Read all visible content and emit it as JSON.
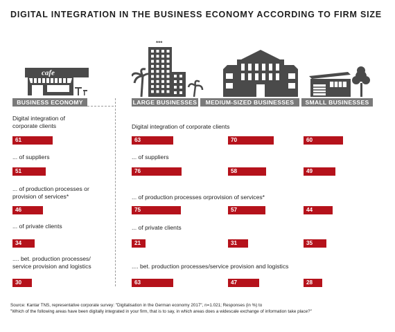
{
  "title": "DIGITAL INTEGRATION IN THE BUSINESS ECONOMY ACCORDING TO FIRM SIZE",
  "icons": {
    "business": {
      "name": "cafe-icon",
      "text": "cafe"
    },
    "large": {
      "name": "skyscraper-icon",
      "stars": "***"
    },
    "medium": {
      "name": "office-building-icon"
    },
    "small": {
      "name": "small-house-icon"
    }
  },
  "colors": {
    "bar": "#b5121b",
    "band": "#7a7a7a",
    "icon": "#4a4a4a"
  },
  "chart_data": {
    "type": "bar",
    "title": "DIGITAL INTEGRATION IN THE BUSINESS ECONOMY ACCORDING TO FIRM SIZE",
    "groups": [
      "BUSINESS ECONOMY",
      "LARGE BUSINESSES",
      "MEDIUM-SIZED BUSINESSES",
      "SMALL BUSINESSES"
    ],
    "left_labels": [
      "Digital integration of\ncorporate clients",
      "... of suppliers",
      "... of production processes or\nprovision of services*",
      "... of private clients",
      ".... bet. production processes/\nservice provision and logistics"
    ],
    "right_labels": [
      "Digital integration of corporate clients",
      "... of suppliers",
      "... of production processes orprovision of services*",
      "... of private clients",
      ".... bet. production processes/service provision and logistics"
    ],
    "series": [
      {
        "name": "BUSINESS ECONOMY",
        "values": [
          61,
          51,
          46,
          34,
          30
        ]
      },
      {
        "name": "LARGE BUSINESSES",
        "values": [
          63,
          76,
          75,
          21,
          63
        ]
      },
      {
        "name": "MEDIUM-SIZED BUSINESSES",
        "values": [
          70,
          58,
          57,
          31,
          47
        ]
      },
      {
        "name": "SMALL BUSINESSES",
        "values": [
          60,
          49,
          44,
          35,
          28
        ]
      }
    ],
    "unit": "%"
  },
  "footer": {
    "line1": "Source: Kantar TNS, representative corporate survey: \"Digitalisation in the German economy 2017\", n=1.021; Responses (in %) to",
    "line2": "\"Which of the following areas have been digitally integrated in your firm, that is to say, in which areas does a widescale exchange of information take place?\""
  }
}
